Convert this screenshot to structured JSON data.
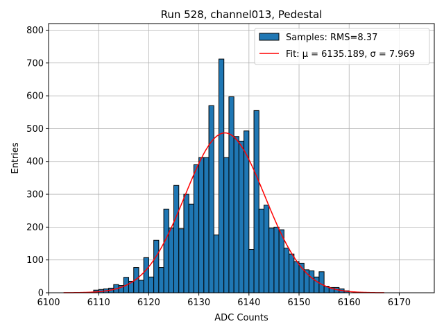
{
  "chart_data": {
    "type": "bar",
    "title": "Run 528, channel013, Pedestal",
    "xlabel": "ADC Counts",
    "ylabel": "Entries",
    "xlim": [
      6100,
      6177
    ],
    "ylim": [
      0,
      820
    ],
    "xticks": [
      6100,
      6110,
      6120,
      6130,
      6140,
      6150,
      6160,
      6170
    ],
    "yticks": [
      0,
      100,
      200,
      300,
      400,
      500,
      600,
      700,
      800
    ],
    "grid": true,
    "legend_position": "top-right",
    "bin_width": 1,
    "histogram": {
      "name": "Samples: RMS=8.37",
      "color": "#1f77b4",
      "edge_color": "#000000",
      "bin_left_edges": [
        6109,
        6110,
        6111,
        6112,
        6113,
        6114,
        6115,
        6116,
        6117,
        6118,
        6119,
        6120,
        6121,
        6122,
        6123,
        6124,
        6125,
        6126,
        6127,
        6128,
        6129,
        6130,
        6131,
        6132,
        6133,
        6134,
        6135,
        6136,
        6137,
        6138,
        6139,
        6140,
        6141,
        6142,
        6143,
        6144,
        6145,
        6146,
        6147,
        6148,
        6149,
        6150,
        6151,
        6152,
        6153,
        6154,
        6155,
        6156,
        6157,
        6158,
        6159
      ],
      "counts": [
        8,
        10,
        12,
        14,
        25,
        22,
        47,
        35,
        77,
        38,
        107,
        48,
        160,
        77,
        255,
        197,
        327,
        195,
        300,
        270,
        390,
        412,
        412,
        570,
        176,
        712,
        412,
        597,
        476,
        462,
        493,
        132,
        555,
        255,
        267,
        197,
        200,
        192,
        136,
        118,
        95,
        90,
        70,
        67,
        48,
        64,
        20,
        16,
        16,
        12,
        6
      ]
    },
    "fit": {
      "name": "Fit: μ = 6135.189, σ = 7.969",
      "color": "#ff0000",
      "mu": 6135.189,
      "sigma": 7.969,
      "amplitude": 487,
      "x_range": [
        6103,
        6167
      ]
    }
  }
}
